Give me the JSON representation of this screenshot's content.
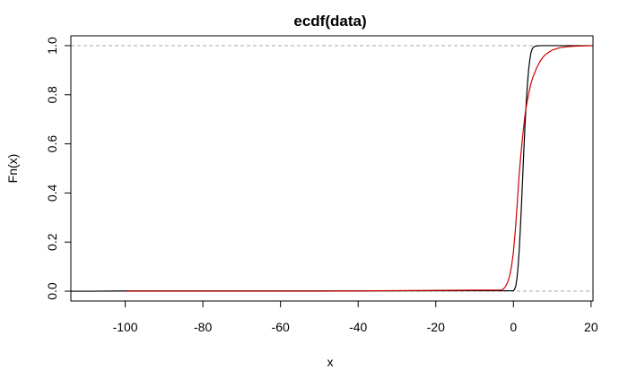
{
  "chart_data": {
    "type": "line",
    "title": "ecdf(data)",
    "xlabel": "x",
    "ylabel": "Fn(x)",
    "xlim": [
      -114,
      20.5
    ],
    "ylim": [
      -0.04,
      1.04
    ],
    "x_ticks": [
      -100,
      -80,
      -60,
      -40,
      -20,
      0,
      20
    ],
    "x_tick_labels": [
      "-100",
      "-80",
      "-60",
      "-40",
      "-20",
      "0",
      "20"
    ],
    "y_ticks": [
      0.0,
      0.2,
      0.4,
      0.6,
      0.8,
      1.0
    ],
    "y_tick_labels": [
      "0.0",
      "0.2",
      "0.4",
      "0.6",
      "0.8",
      "1.0"
    ],
    "reference_lines": [
      0,
      1
    ],
    "grid": false,
    "legend": "none",
    "series": [
      {
        "color": "#000000",
        "x": [
          -114,
          -108,
          -100,
          -50,
          0,
          0.3,
          0.6,
          0.9,
          1.2,
          1.5,
          1.8,
          2.1,
          2.4,
          2.7,
          3.0,
          3.3,
          3.6,
          3.9,
          4.2,
          4.5,
          4.8,
          5.1,
          5.5,
          6.0,
          7,
          10,
          20.5
        ],
        "y": [
          0,
          0,
          0.001,
          0.001,
          0.002,
          0.008,
          0.02,
          0.05,
          0.1,
          0.17,
          0.26,
          0.36,
          0.47,
          0.58,
          0.68,
          0.77,
          0.84,
          0.9,
          0.94,
          0.97,
          0.985,
          0.993,
          0.997,
          0.999,
          1.0,
          1.0,
          1.0
        ]
      },
      {
        "color": "#cc0000",
        "x": [
          -100,
          -50,
          -3,
          -2.5,
          -2,
          -1.5,
          -1,
          -0.5,
          0,
          0.5,
          1,
          1.5,
          2,
          2.5,
          3,
          3.5,
          4,
          4.5,
          5,
          6,
          7,
          8,
          9,
          10,
          12,
          14,
          16,
          18,
          20.5
        ],
        "y": [
          0.0,
          0.0,
          0.005,
          0.01,
          0.02,
          0.035,
          0.06,
          0.1,
          0.16,
          0.25,
          0.36,
          0.48,
          0.57,
          0.65,
          0.72,
          0.77,
          0.81,
          0.845,
          0.87,
          0.91,
          0.94,
          0.96,
          0.972,
          0.982,
          0.992,
          0.996,
          0.998,
          0.999,
          1.0
        ]
      }
    ]
  }
}
